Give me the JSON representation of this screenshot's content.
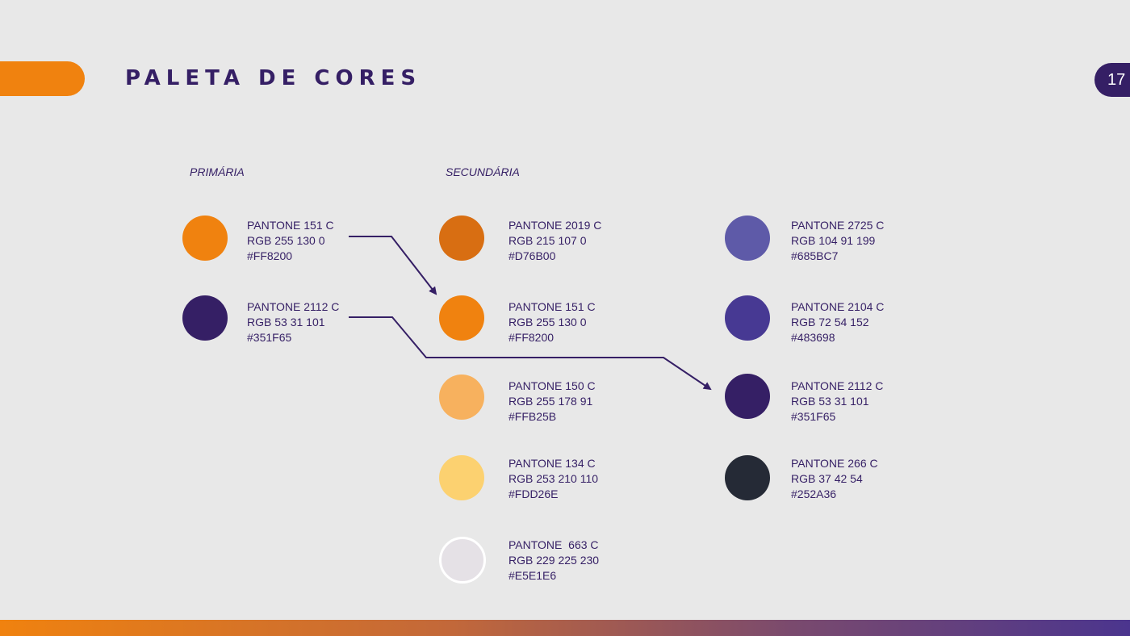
{
  "header": {
    "title": "PALETA DE CORES",
    "page_number": "17",
    "accent_color": "#F0820F",
    "badge_color": "#351F65"
  },
  "sections": {
    "primary_label": "PRIMÁRIA",
    "secondary_label": "SECUNDÁRIA"
  },
  "primary": [
    {
      "pantone": "PANTONE 151 C",
      "rgb": "RGB 255 130 0",
      "hex": "#FF8200",
      "color": "#F0820F"
    },
    {
      "pantone": "PANTONE 2112 C",
      "rgb": "RGB 53 31 101",
      "hex": "#351F65",
      "color": "#351F65"
    }
  ],
  "secondary_orange": [
    {
      "pantone": "PANTONE 2019 C",
      "rgb": "RGB 215 107 0",
      "hex": "#D76B00",
      "color": "#D86E12"
    },
    {
      "pantone": "PANTONE 151 C",
      "rgb": "RGB 255 130 0",
      "hex": "#FF8200",
      "color": "#F0820F"
    },
    {
      "pantone": "PANTONE 150 C",
      "rgb": "RGB 255 178 91",
      "hex": "#FFB25B",
      "color": "#F7B15E"
    },
    {
      "pantone": "PANTONE 134 C",
      "rgb": "RGB 253 210 110",
      "hex": "#FDD26E",
      "color": "#FCD170"
    },
    {
      "pantone": "PANTONE  663 C",
      "rgb": "RGB 229 225 230",
      "hex": "#E5E1E6",
      "color": "#E5E1E6"
    }
  ],
  "secondary_purple": [
    {
      "pantone": "PANTONE 2725 C",
      "rgb": "RGB 104 91 199",
      "hex": "#685BC7",
      "color": "#5E5AA8"
    },
    {
      "pantone": "PANTONE 2104 C",
      "rgb": "RGB 72 54 152",
      "hex": "#483698",
      "color": "#473993"
    },
    {
      "pantone": "PANTONE 2112 C",
      "rgb": "RGB 53 31 101",
      "hex": "#351F65",
      "color": "#351F65"
    },
    {
      "pantone": "PANTONE 266 C",
      "rgb": "RGB 37 42 54",
      "hex": "#252A36",
      "color": "#252A36"
    }
  ]
}
